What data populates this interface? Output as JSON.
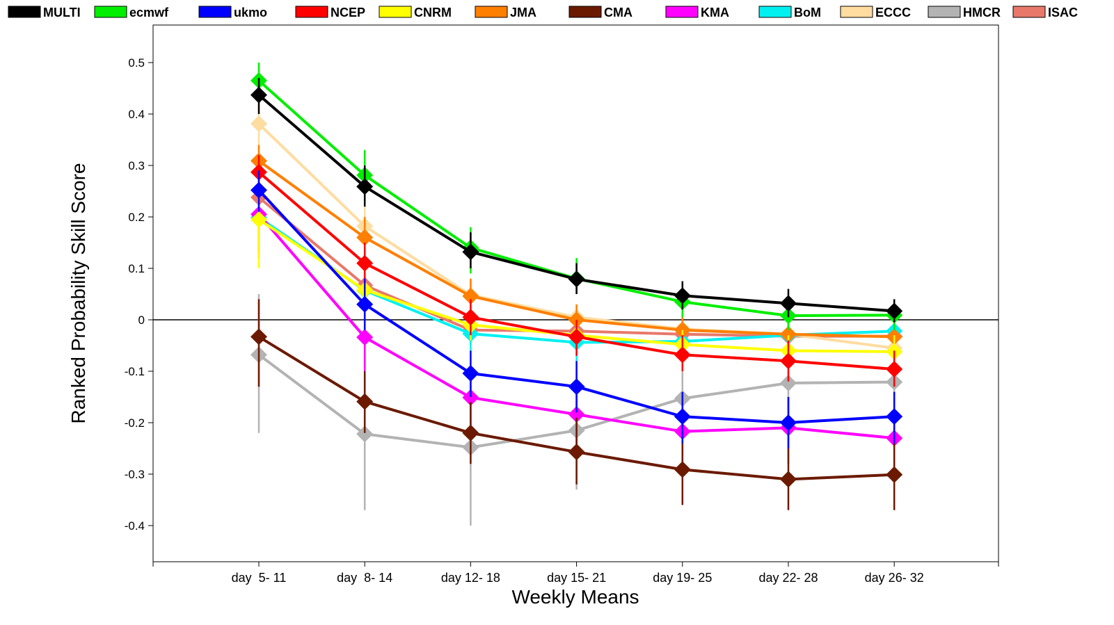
{
  "chart_data": {
    "type": "line",
    "xlabel": "Weekly Means",
    "ylabel": "Ranked Probability Skill Score",
    "categories": [
      "day  5- 11",
      "day  8- 14",
      "day 12- 18",
      "day 15- 21",
      "day 19- 25",
      "day 22- 28",
      "day 26- 32"
    ],
    "ylim": [
      -0.47,
      0.57
    ],
    "yticks": [
      -0.4,
      -0.3,
      -0.2,
      -0.1,
      0,
      0.1,
      0.2,
      0.3,
      0.4,
      0.5
    ],
    "ytick_labels": [
      "-0.4",
      "-0.3",
      "-0.2",
      "-0.1",
      "0",
      "0.1",
      "0.2",
      "0.3",
      "0.4",
      "0.5"
    ],
    "grid": false,
    "reference_line_y": 0,
    "legend_position": "top",
    "series": [
      {
        "name": "ISAC",
        "color": "#e8796a",
        "values": [
          0.238,
          0.067,
          -0.02,
          -0.022,
          -0.028,
          -0.032,
          -0.032
        ],
        "err": [
          [
            0.22,
            0.255
          ],
          [
            0.04,
            0.09
          ],
          [
            -0.05,
            0.01
          ],
          [
            -0.05,
            0.01
          ],
          [
            -0.06,
            0.005
          ],
          [
            -0.06,
            0.0
          ],
          [
            -0.06,
            0.0
          ]
        ]
      },
      {
        "name": "HMCR",
        "color": "#b3b3b3",
        "values": [
          -0.068,
          -0.222,
          -0.248,
          -0.215,
          -0.153,
          -0.123,
          -0.121
        ],
        "err": [
          [
            -0.22,
            0.05
          ],
          [
            -0.37,
            -0.08
          ],
          [
            -0.4,
            -0.1
          ],
          [
            -0.33,
            -0.1
          ],
          [
            -0.26,
            -0.05
          ],
          [
            -0.22,
            -0.03
          ],
          [
            -0.22,
            -0.03
          ]
        ]
      },
      {
        "name": "ECCC",
        "color": "#ffdca0",
        "values": [
          0.381,
          0.182,
          0.048,
          0.005,
          -0.018,
          -0.028,
          -0.055
        ],
        "err": [
          [
            0.34,
            0.42
          ],
          [
            0.15,
            0.22
          ],
          [
            0.02,
            0.08
          ],
          [
            -0.02,
            0.03
          ],
          [
            -0.04,
            0.005
          ],
          [
            -0.05,
            -0.005
          ],
          [
            -0.08,
            -0.03
          ]
        ]
      },
      {
        "name": "BoM",
        "color": "#00f0f0",
        "values": [
          0.199,
          0.057,
          -0.027,
          -0.044,
          -0.042,
          -0.03,
          -0.022
        ],
        "err": [
          [
            0.13,
            0.24
          ],
          [
            0.03,
            0.09
          ],
          [
            -0.06,
            0.005
          ],
          [
            -0.08,
            -0.01
          ],
          [
            -0.07,
            -0.01
          ],
          [
            -0.06,
            0.0
          ],
          [
            -0.05,
            0.005
          ]
        ]
      },
      {
        "name": "KMA",
        "color": "#ff00ff",
        "values": [
          0.205,
          -0.034,
          -0.151,
          -0.184,
          -0.217,
          -0.21,
          -0.23
        ],
        "err": [
          [
            0.12,
            0.26
          ],
          [
            -0.1,
            0.02
          ],
          [
            -0.22,
            -0.09
          ],
          [
            -0.25,
            -0.12
          ],
          [
            -0.28,
            -0.16
          ],
          [
            -0.28,
            -0.15
          ],
          [
            -0.29,
            -0.17
          ]
        ]
      },
      {
        "name": "CMA",
        "color": "#6b1a00",
        "values": [
          -0.033,
          -0.159,
          -0.22,
          -0.257,
          -0.291,
          -0.31,
          -0.301
        ],
        "err": [
          [
            -0.13,
            0.04
          ],
          [
            -0.22,
            -0.1
          ],
          [
            -0.28,
            -0.16
          ],
          [
            -0.32,
            -0.19
          ],
          [
            -0.36,
            -0.22
          ],
          [
            -0.37,
            -0.25
          ],
          [
            -0.37,
            -0.24
          ]
        ]
      },
      {
        "name": "JMA",
        "color": "#ff7f00",
        "values": [
          0.309,
          0.16,
          0.046,
          0.0,
          -0.02,
          -0.028,
          -0.033
        ],
        "err": [
          [
            0.28,
            0.34
          ],
          [
            0.12,
            0.2
          ],
          [
            0.01,
            0.08
          ],
          [
            -0.03,
            0.03
          ],
          [
            -0.05,
            0.01
          ],
          [
            -0.05,
            -0.005
          ],
          [
            -0.06,
            -0.005
          ]
        ]
      },
      {
        "name": "CNRM",
        "color": "#ffff00",
        "values": [
          0.195,
          0.058,
          -0.01,
          -0.03,
          -0.048,
          -0.06,
          -0.062
        ],
        "err": [
          [
            0.1,
            0.25
          ],
          [
            0.02,
            0.1
          ],
          [
            -0.04,
            0.02
          ],
          [
            -0.06,
            0.0
          ],
          [
            -0.08,
            -0.02
          ],
          [
            -0.09,
            -0.03
          ],
          [
            -0.09,
            -0.03
          ]
        ]
      },
      {
        "name": "NCEP",
        "color": "#ff0000",
        "values": [
          0.287,
          0.11,
          0.005,
          -0.033,
          -0.068,
          -0.08,
          -0.096
        ],
        "err": [
          [
            0.25,
            0.32
          ],
          [
            0.07,
            0.15
          ],
          [
            -0.03,
            0.04
          ],
          [
            -0.07,
            0.0
          ],
          [
            -0.1,
            -0.03
          ],
          [
            -0.12,
            -0.04
          ],
          [
            -0.13,
            -0.06
          ]
        ]
      },
      {
        "name": "ukmo",
        "color": "#0000ff",
        "values": [
          0.252,
          0.03,
          -0.104,
          -0.13,
          -0.188,
          -0.2,
          -0.188
        ],
        "err": [
          [
            0.21,
            0.29
          ],
          [
            -0.02,
            0.08
          ],
          [
            -0.15,
            -0.06
          ],
          [
            -0.18,
            -0.08
          ],
          [
            -0.24,
            -0.14
          ],
          [
            -0.25,
            -0.15
          ],
          [
            -0.24,
            -0.14
          ]
        ]
      },
      {
        "name": "ecmwf",
        "color": "#00ee00",
        "values": [
          0.465,
          0.281,
          0.14,
          0.08,
          0.035,
          0.008,
          0.009
        ],
        "err": [
          [
            0.43,
            0.5
          ],
          [
            0.23,
            0.33
          ],
          [
            0.09,
            0.18
          ],
          [
            0.05,
            0.12
          ],
          [
            0.005,
            0.07
          ],
          [
            -0.02,
            0.04
          ],
          [
            -0.02,
            0.04
          ]
        ]
      },
      {
        "name": "MULTI",
        "color": "#000000",
        "values": [
          0.437,
          0.259,
          0.132,
          0.079,
          0.047,
          0.032,
          0.017
        ],
        "err": [
          [
            0.4,
            0.47
          ],
          [
            0.22,
            0.3
          ],
          [
            0.1,
            0.17
          ],
          [
            0.05,
            0.11
          ],
          [
            0.02,
            0.075
          ],
          [
            0.005,
            0.06
          ],
          [
            -0.005,
            0.04
          ]
        ]
      }
    ],
    "legend": [
      {
        "name": "MULTI",
        "color": "#000000"
      },
      {
        "name": "ecmwf",
        "color": "#00ee00"
      },
      {
        "name": "ukmo",
        "color": "#0000ff"
      },
      {
        "name": "NCEP",
        "color": "#ff0000"
      },
      {
        "name": "CNRM",
        "color": "#ffff00"
      },
      {
        "name": "JMA",
        "color": "#ff7f00"
      },
      {
        "name": "CMA",
        "color": "#6b1a00"
      },
      {
        "name": "KMA",
        "color": "#ff00ff"
      },
      {
        "name": "BoM",
        "color": "#00f0f0"
      },
      {
        "name": "ECCC",
        "color": "#ffdca0"
      },
      {
        "name": "HMCR",
        "color": "#b3b3b3"
      },
      {
        "name": "ISAC",
        "color": "#e8796a"
      }
    ]
  }
}
